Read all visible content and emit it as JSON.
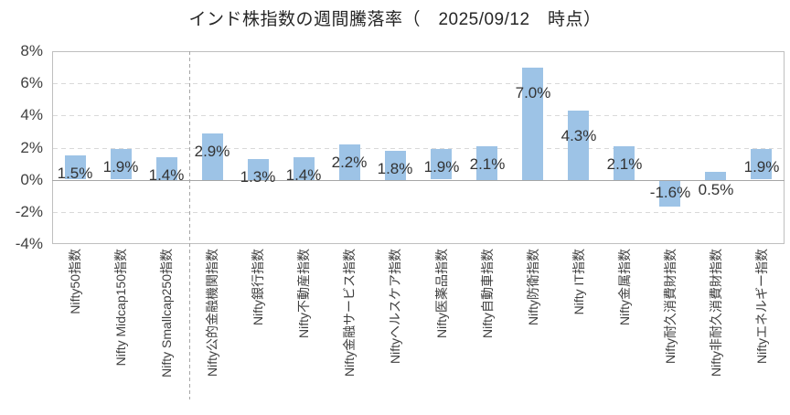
{
  "title": "インド株指数の週間騰落率（　2025/09/12　時点）",
  "colors": {
    "bar": "#9DC3E6",
    "grid": "#D9D9D9",
    "plot_border": "#BFBFBF",
    "zero_line": "#A6A6A6",
    "separator": "#A6A6A6",
    "title_text": "#262626",
    "axis_text": "#404040",
    "data_label_text": "#333333"
  },
  "chart_data": {
    "type": "bar",
    "title": "インド株指数の週間騰落率（　2025/09/12　時点）",
    "categories": [
      "Nifty50指数",
      "Nifty Midcap150指数",
      "Nifty Smallcap250指数",
      "Nifty公的金融機関指数",
      "Nifty銀行指数",
      "Nifty不動産指数",
      "Nifty金融サービス指数",
      "Niftyヘルスケア指数",
      "Nifty医薬品指数",
      "Nifty自動車指数",
      "Nifty防衛指数",
      "Nifty IT指数",
      "Nifty金属指数",
      "Nifty耐久消費財指数",
      "Nifty非耐久消費財指数",
      "Niftyエネルギー指数"
    ],
    "values": [
      1.5,
      1.9,
      1.4,
      2.9,
      1.3,
      1.4,
      2.2,
      1.8,
      1.9,
      2.1,
      7.0,
      4.3,
      2.1,
      -1.6,
      0.5,
      1.9
    ],
    "data_labels": [
      "1.5%",
      "1.9%",
      "1.4%",
      "2.9%",
      "1.3%",
      "1.4%",
      "2.2%",
      "1.8%",
      "1.9%",
      "2.1%",
      "7.0%",
      "4.3%",
      "2.1%",
      "-1.6%",
      "0.5%",
      "1.9%"
    ],
    "xlabel": "",
    "ylabel": "",
    "ylim": [
      -4,
      8
    ],
    "ytick_step": 2,
    "ytick_labels": [
      "8%",
      "6%",
      "4%",
      "2%",
      "0%",
      "-2%",
      "-4%"
    ],
    "grid": true,
    "legend_position": "none",
    "separator_after_index": 2
  }
}
